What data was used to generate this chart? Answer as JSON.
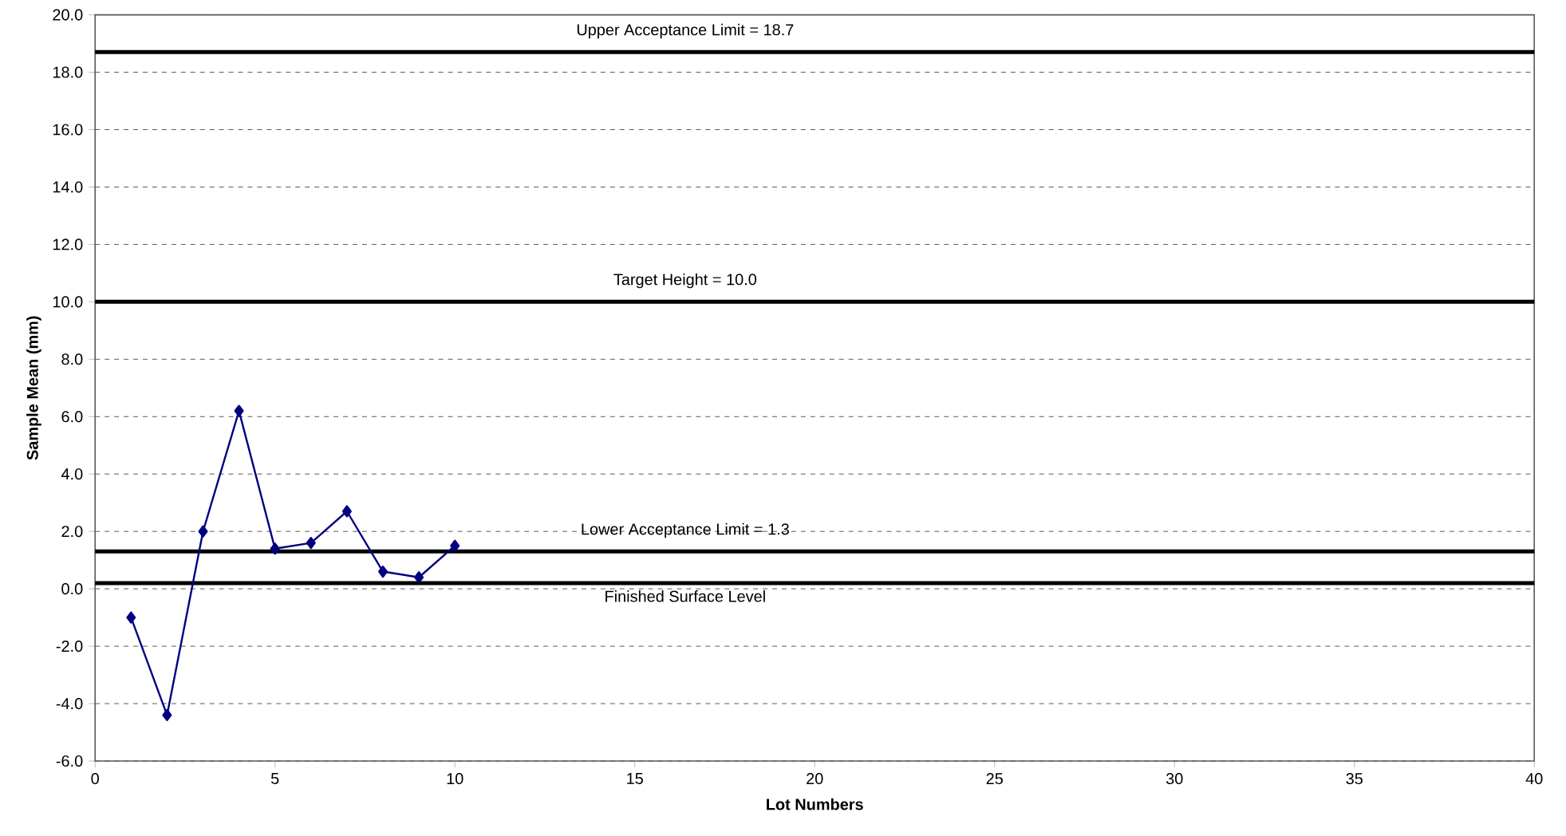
{
  "chart_data": {
    "type": "line",
    "xlabel": "Lot Numbers",
    "ylabel": "Sample Mean (mm)",
    "x": [
      1,
      2,
      3,
      4,
      5,
      6,
      7,
      8,
      9,
      10
    ],
    "series": [
      {
        "color": "#000080",
        "values": [
          -1.0,
          -4.4,
          2.0,
          6.2,
          1.4,
          1.6,
          2.7,
          0.6,
          0.4,
          1.5
        ]
      }
    ],
    "xlim": [
      0,
      40
    ],
    "xticks": [
      0,
      5,
      10,
      15,
      20,
      25,
      30,
      35,
      40
    ],
    "ylim": [
      -6,
      20
    ],
    "yticks": [
      {
        "value": -6,
        "label": "-6.0"
      },
      {
        "value": -4,
        "label": "-4.0"
      },
      {
        "value": -2,
        "label": "-2.0"
      },
      {
        "value": 0,
        "label": "0.0"
      },
      {
        "value": 2,
        "label": "2.0"
      },
      {
        "value": 4,
        "label": "4.0"
      },
      {
        "value": 6,
        "label": "6.0"
      },
      {
        "value": 8,
        "label": "8.0"
      },
      {
        "value": 10,
        "label": "10.0"
      },
      {
        "value": 12,
        "label": "12.0"
      },
      {
        "value": 14,
        "label": "14.0"
      },
      {
        "value": 16,
        "label": "16.0"
      },
      {
        "value": 18,
        "label": "18.0"
      },
      {
        "value": 20,
        "label": "20.0"
      }
    ],
    "ref_lines": [
      {
        "axis": "y",
        "value": 18.7,
        "label": "Upper Acceptance Limit = 18.7",
        "color": "#000000"
      },
      {
        "axis": "y",
        "value": 10.0,
        "label": "Target Height = 10.0",
        "color": "#000000"
      },
      {
        "axis": "y",
        "value": 1.3,
        "label": "Lower Acceptance Limit = 1.3",
        "color": "#000000"
      },
      {
        "axis": "y",
        "value": 0.2,
        "label": "Finished Surface Level",
        "color": "#000000"
      }
    ],
    "grid": "y",
    "marker": "diamond",
    "line_style": "solid"
  }
}
